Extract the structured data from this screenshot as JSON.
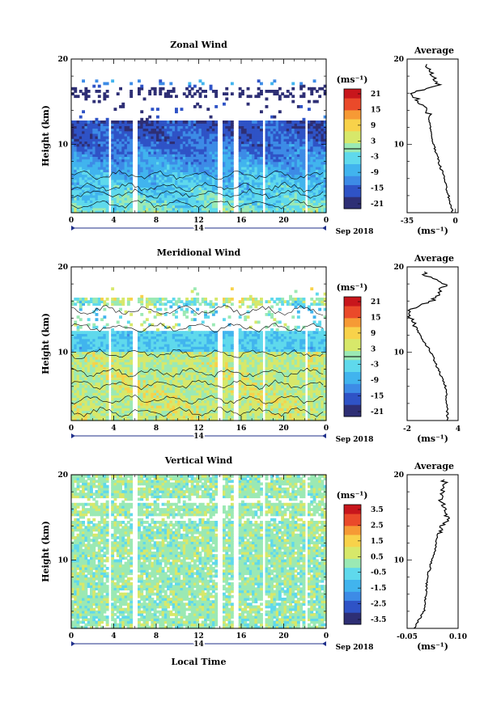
{
  "figure": {
    "date_label": "Sep 2018",
    "day_label": "14",
    "xlabel": "Local Time",
    "colorbar_unit": "(ms⁻¹)",
    "avg_unit": "(ms⁻¹)",
    "colors": {
      "colormap": [
        "#2e2f75",
        "#2f53c6",
        "#3d8be6",
        "#41b4ee",
        "#5fd9ec",
        "#9be9b4",
        "#d7e86a",
        "#f8d24a",
        "#f69a35",
        "#ea4a2a",
        "#c8161c"
      ],
      "contour": "#000000",
      "axis": "#000000",
      "timebar": "#1f2f8a"
    }
  },
  "chart_data": [
    {
      "type": "heatmap",
      "title": "Zonal Wind",
      "ylabel": "Height (km)",
      "xlim": [
        0,
        24
      ],
      "ylim": [
        2,
        20
      ],
      "xticks": [
        "0",
        "4",
        "8",
        "12",
        "16",
        "20",
        "0"
      ],
      "yticks": [
        {
          "value": 10,
          "label": "10"
        },
        {
          "value": 20,
          "label": "20"
        }
      ],
      "colorbar": {
        "range": [
          -24,
          24
        ],
        "ticks": [
          "21",
          "15",
          "9",
          "3",
          "-3",
          "-9",
          "-15",
          "-21"
        ],
        "zero_line": true
      },
      "profile_summary": [
        {
          "height": 2,
          "value": -2
        },
        {
          "height": 6,
          "value": -8
        },
        {
          "height": 10,
          "value": -16
        },
        {
          "height": 12,
          "value": -18
        },
        {
          "height": 14,
          "value": -20
        },
        {
          "height": 15,
          "value": -26
        },
        {
          "height": 16,
          "value": -32
        },
        {
          "height": 17,
          "value": -12
        },
        {
          "height": 19,
          "value": -20
        }
      ],
      "average": {
        "title": "Average",
        "xlim": [
          -35,
          2
        ],
        "xticks": [
          "-35",
          "0"
        ],
        "yticks": [
          "10",
          "20"
        ]
      }
    },
    {
      "type": "heatmap",
      "title": "Meridional Wind",
      "ylabel": "Height (km)",
      "xlim": [
        0,
        24
      ],
      "ylim": [
        2,
        20
      ],
      "xticks": [
        "0",
        "4",
        "8",
        "12",
        "16",
        "20",
        "0"
      ],
      "yticks": [
        {
          "value": 10,
          "label": "10"
        },
        {
          "value": 20,
          "label": "20"
        }
      ],
      "colorbar": {
        "range": [
          -24,
          24
        ],
        "ticks": [
          "21",
          "15",
          "9",
          "3",
          "-3",
          "-9",
          "-15",
          "-21"
        ],
        "zero_line": true
      },
      "profile_summary": [
        {
          "height": 2,
          "value": 2.8
        },
        {
          "height": 6,
          "value": 2.5
        },
        {
          "height": 10,
          "value": 0.8
        },
        {
          "height": 12,
          "value": -0.5
        },
        {
          "height": 14,
          "value": -1.5
        },
        {
          "height": 15,
          "value": -1.8
        },
        {
          "height": 16,
          "value": 1
        },
        {
          "height": 18,
          "value": 2.5
        },
        {
          "height": 19,
          "value": 0
        }
      ],
      "average": {
        "title": "Average",
        "xlim": [
          -2,
          4
        ],
        "xticks": [
          "-2",
          "4"
        ],
        "yticks": [
          "10",
          "20"
        ]
      }
    },
    {
      "type": "heatmap",
      "title": "Vertical Wind",
      "ylabel": "Height (km)",
      "xlabel": "Local Time",
      "xlim": [
        0,
        24
      ],
      "ylim": [
        2,
        20
      ],
      "xticks": [
        "0",
        "4",
        "8",
        "12",
        "16",
        "20",
        "0"
      ],
      "yticks": [
        {
          "value": 10,
          "label": "10"
        },
        {
          "value": 20,
          "label": "20"
        }
      ],
      "colorbar": {
        "range": [
          -4,
          4
        ],
        "ticks": [
          "3.5",
          "2.5",
          "1.5",
          "0.5",
          "-0.5",
          "-1.5",
          "-2.5",
          "-3.5"
        ],
        "zero_line": false
      },
      "profile_summary": [
        {
          "height": 2,
          "value": -0.03
        },
        {
          "height": 4,
          "value": 0.0
        },
        {
          "height": 8,
          "value": 0.01
        },
        {
          "height": 11,
          "value": 0.03
        },
        {
          "height": 13,
          "value": 0.04
        },
        {
          "height": 15,
          "value": 0.07
        },
        {
          "height": 17,
          "value": 0.05
        },
        {
          "height": 19,
          "value": 0.06
        }
      ],
      "average": {
        "title": "Average",
        "xlim": [
          -0.05,
          0.1
        ],
        "xticks": [
          "-0.05",
          "0.10"
        ],
        "yticks": [
          "10",
          "20"
        ]
      }
    }
  ]
}
